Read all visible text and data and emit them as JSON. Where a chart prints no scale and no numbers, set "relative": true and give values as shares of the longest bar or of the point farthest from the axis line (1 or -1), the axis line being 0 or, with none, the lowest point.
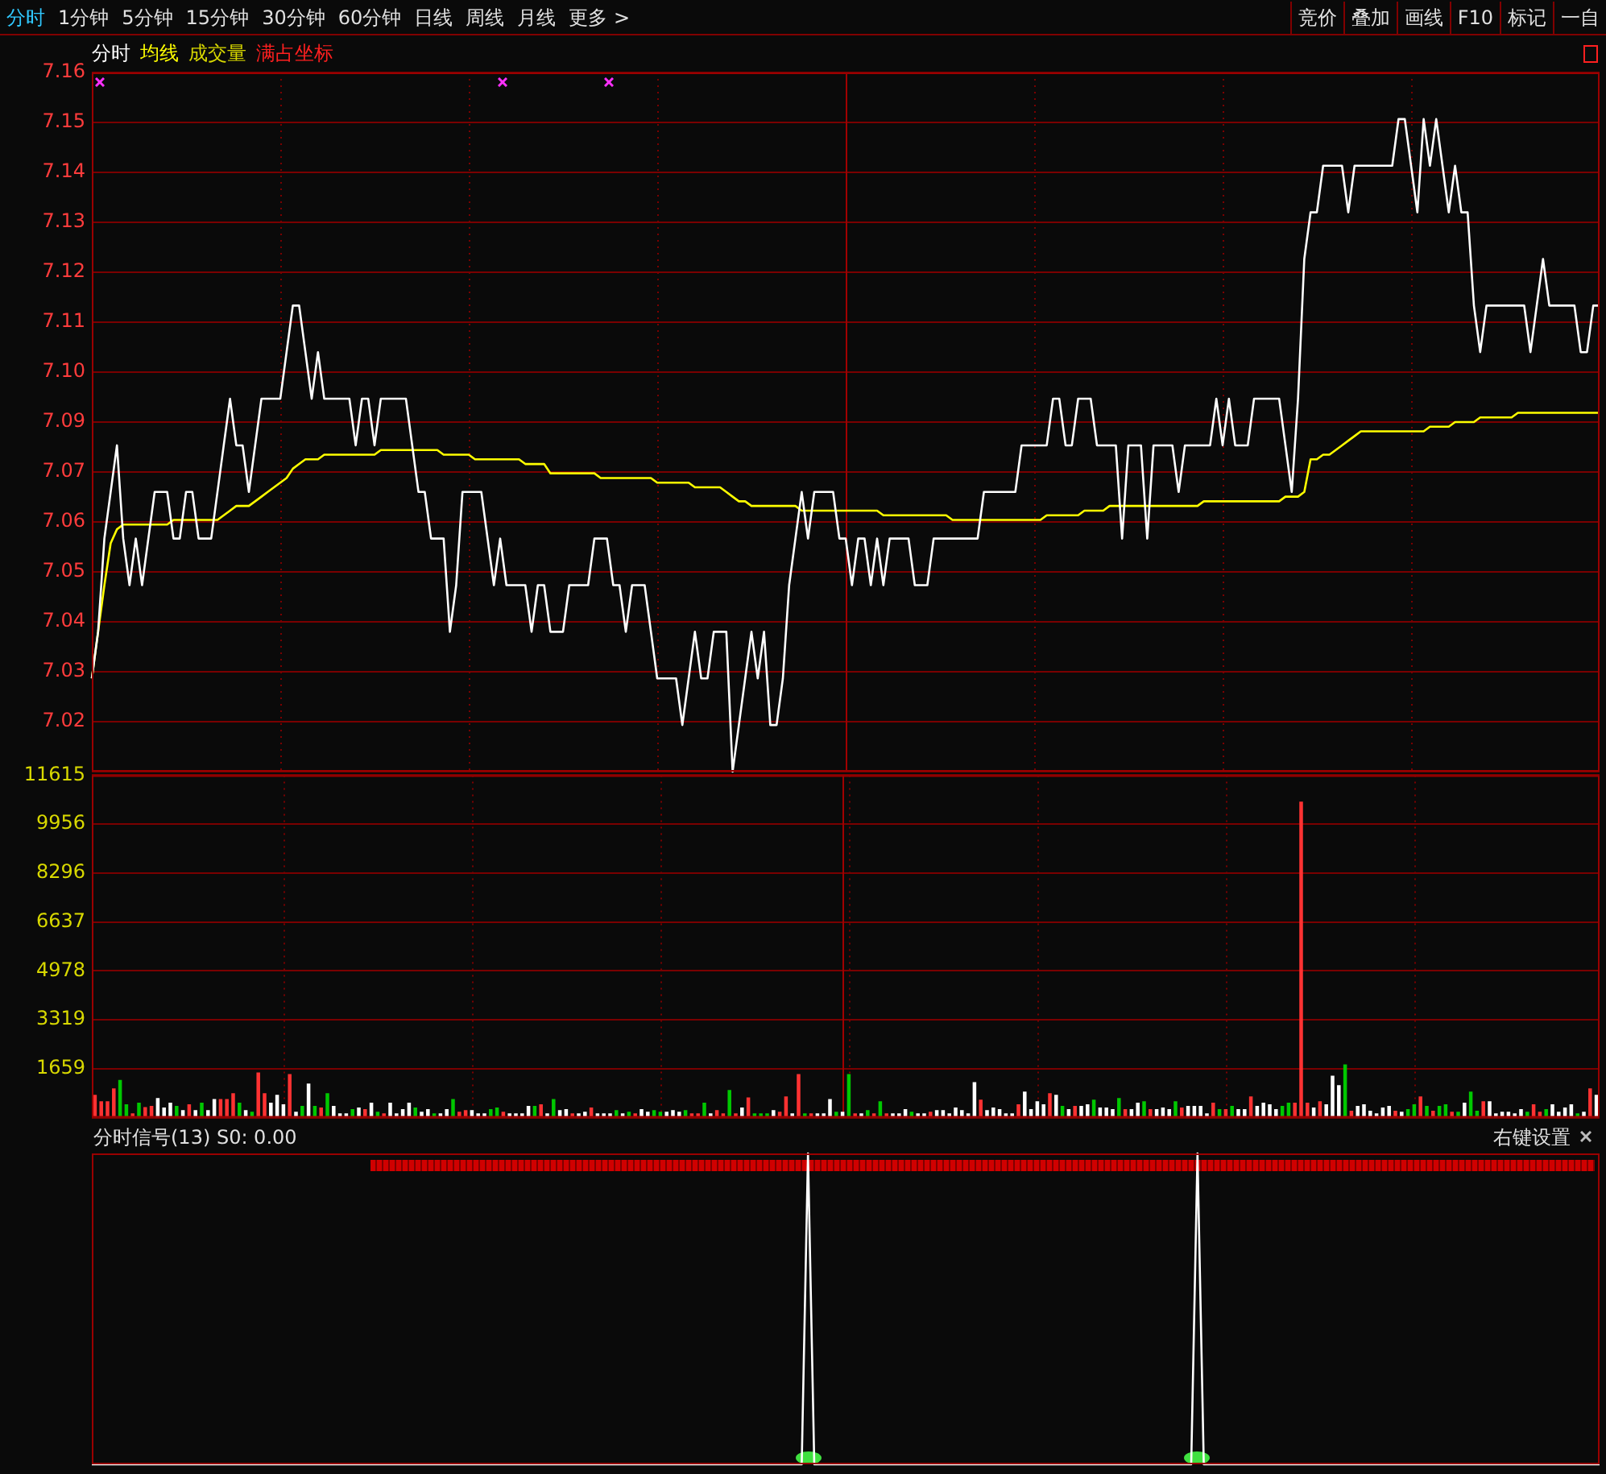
{
  "chart_data": [
    {
      "type": "other",
      "annotations": [
        "分时",
        "1分钟",
        "5分钟",
        "15分钟",
        "30分钟",
        "60分钟",
        "日线",
        "周线",
        "月线",
        "更多 >",
        "竞价",
        "叠加",
        "画线",
        "F10",
        "标记",
        "一自"
      ]
    },
    {
      "type": "line",
      "categories": [
        null,
        null,
        null,
        null,
        null,
        null,
        null,
        null,
        null,
        null,
        null,
        null,
        null,
        null,
        null,
        null,
        null,
        null,
        null,
        null,
        null,
        null,
        null,
        null,
        null,
        null,
        null,
        null,
        null,
        null,
        null,
        null,
        null,
        null,
        null,
        null,
        null,
        null,
        null,
        null,
        null,
        null,
        null,
        null,
        null,
        null,
        null,
        null,
        null,
        null,
        null,
        null,
        null,
        null,
        null,
        null,
        null,
        null,
        null,
        null,
        null,
        null,
        null,
        null,
        null,
        null,
        null,
        null,
        null,
        null,
        null,
        null,
        null,
        null,
        null,
        null,
        null,
        null,
        null,
        null,
        null,
        null,
        null,
        null,
        null,
        null,
        null,
        null,
        null,
        null,
        null,
        null,
        null,
        null,
        null,
        null,
        null,
        null,
        null,
        null,
        null,
        null,
        null,
        null,
        null,
        null,
        null,
        null,
        null,
        null,
        null,
        null,
        null,
        null,
        null,
        null,
        null,
        null,
        null,
        null,
        null,
        null,
        null,
        null,
        null,
        null,
        null,
        null,
        null,
        null,
        null,
        null,
        null,
        null,
        null,
        null,
        null,
        null,
        null,
        null,
        null,
        null,
        null,
        null,
        null,
        null,
        null,
        null,
        null,
        null,
        null,
        null,
        null,
        null,
        null,
        null,
        null,
        null,
        null,
        null,
        null,
        null,
        null,
        null,
        null,
        null,
        null,
        null,
        null,
        null,
        null,
        null,
        null,
        null,
        null,
        null,
        null,
        null,
        null,
        null,
        null,
        null,
        null,
        null,
        null,
        null,
        null,
        null,
        null,
        null,
        null,
        null,
        null,
        null,
        null,
        null,
        null,
        null,
        null,
        null,
        null,
        null,
        null,
        null,
        null,
        null,
        null,
        null,
        null,
        null,
        null,
        null,
        null,
        null,
        null,
        null,
        null,
        null,
        null,
        null,
        null,
        null,
        null,
        null,
        null,
        null,
        null,
        null,
        null,
        null,
        null,
        null,
        null,
        null,
        null,
        null,
        null,
        null,
        null,
        null,
        null
      ],
      "series": [
        {
          "name": "分时",
          "color": "#ffffff",
          "values": [
            7.03,
            7.04,
            7.06,
            7.07,
            7.08,
            7.06,
            7.05,
            7.06,
            7.05,
            7.06,
            7.07,
            7.07,
            7.07,
            7.06,
            7.06,
            7.07,
            7.07,
            7.06,
            7.06,
            7.06,
            7.07,
            7.08,
            7.09,
            7.08,
            7.08,
            7.07,
            7.08,
            7.09,
            7.09,
            7.09,
            7.09,
            7.1,
            7.11,
            7.11,
            7.1,
            7.09,
            7.1,
            7.09,
            7.09,
            7.09,
            7.09,
            7.09,
            7.08,
            7.09,
            7.09,
            7.08,
            7.09,
            7.09,
            7.09,
            7.09,
            7.09,
            7.08,
            7.07,
            7.07,
            7.06,
            7.06,
            7.06,
            7.04,
            7.05,
            7.07,
            7.07,
            7.07,
            7.07,
            7.06,
            7.05,
            7.06,
            7.05,
            7.05,
            7.05,
            7.05,
            7.04,
            7.05,
            7.05,
            7.04,
            7.04,
            7.04,
            7.05,
            7.05,
            7.05,
            7.05,
            7.06,
            7.06,
            7.06,
            7.05,
            7.05,
            7.04,
            7.05,
            7.05,
            7.05,
            7.04,
            7.03,
            7.03,
            7.03,
            7.03,
            7.02,
            7.03,
            7.04,
            7.03,
            7.03,
            7.04,
            7.04,
            7.04,
            7.01,
            7.02,
            7.03,
            7.04,
            7.03,
            7.04,
            7.02,
            7.02,
            7.03,
            7.05,
            7.06,
            7.07,
            7.06,
            7.07,
            7.07,
            7.07,
            7.07,
            7.06,
            7.06,
            7.05,
            7.06,
            7.06,
            7.05,
            7.06,
            7.05,
            7.06,
            7.06,
            7.06,
            7.06,
            7.05,
            7.05,
            7.05,
            7.06,
            7.06,
            7.06,
            7.06,
            7.06,
            7.06,
            7.06,
            7.06,
            7.07,
            7.07,
            7.07,
            7.07,
            7.07,
            7.07,
            7.08,
            7.08,
            7.08,
            7.08,
            7.08,
            7.09,
            7.09,
            7.08,
            7.08,
            7.09,
            7.09,
            7.09,
            7.08,
            7.08,
            7.08,
            7.08,
            7.06,
            7.08,
            7.08,
            7.08,
            7.06,
            7.08,
            7.08,
            7.08,
            7.08,
            7.07,
            7.08,
            7.08,
            7.08,
            7.08,
            7.08,
            7.09,
            7.08,
            7.09,
            7.08,
            7.08,
            7.08,
            7.09,
            7.09,
            7.09,
            7.09,
            7.09,
            7.08,
            7.07,
            7.09,
            7.12,
            7.13,
            7.13,
            7.14,
            7.14,
            7.14,
            7.14,
            7.13,
            7.14,
            7.14,
            7.14,
            7.14,
            7.14,
            7.14,
            7.14,
            7.15,
            7.15,
            7.14,
            7.13,
            7.15,
            7.14,
            7.15,
            7.14,
            7.13,
            7.14,
            7.13,
            7.13,
            7.11,
            7.1,
            7.11,
            7.11,
            7.11,
            7.11,
            7.11,
            7.11,
            7.11,
            7.1,
            7.11,
            7.12,
            7.11,
            7.11,
            7.11,
            7.11,
            7.11,
            7.1,
            7.1,
            7.11,
            7.11
          ]
        },
        {
          "name": "均线",
          "color": "#ffff00",
          "values": [
            7.03,
            7.04,
            7.05,
            7.059,
            7.062,
            7.063,
            7.063,
            7.063,
            7.063,
            7.063,
            7.063,
            7.063,
            7.063,
            7.064,
            7.064,
            7.064,
            7.064,
            7.064,
            7.064,
            7.064,
            7.064,
            7.065,
            7.066,
            7.067,
            7.067,
            7.067,
            7.068,
            7.069,
            7.07,
            7.071,
            7.072,
            7.073,
            7.075,
            7.076,
            7.077,
            7.077,
            7.077,
            7.078,
            7.078,
            7.078,
            7.078,
            7.078,
            7.078,
            7.078,
            7.078,
            7.078,
            7.079,
            7.079,
            7.079,
            7.079,
            7.079,
            7.079,
            7.079,
            7.079,
            7.079,
            7.079,
            7.078,
            7.078,
            7.078,
            7.078,
            7.078,
            7.077,
            7.077,
            7.077,
            7.077,
            7.077,
            7.077,
            7.077,
            7.077,
            7.076,
            7.076,
            7.076,
            7.076,
            7.074,
            7.074,
            7.074,
            7.074,
            7.074,
            7.074,
            7.074,
            7.074,
            7.073,
            7.073,
            7.073,
            7.073,
            7.073,
            7.073,
            7.073,
            7.073,
            7.073,
            7.072,
            7.072,
            7.072,
            7.072,
            7.072,
            7.072,
            7.071,
            7.071,
            7.071,
            7.071,
            7.071,
            7.07,
            7.069,
            7.068,
            7.068,
            7.067,
            7.067,
            7.067,
            7.067,
            7.067,
            7.067,
            7.067,
            7.067,
            7.066,
            7.066,
            7.066,
            7.066,
            7.066,
            7.066,
            7.066,
            7.066,
            7.066,
            7.066,
            7.066,
            7.066,
            7.066,
            7.065,
            7.065,
            7.065,
            7.065,
            7.065,
            7.065,
            7.065,
            7.065,
            7.065,
            7.065,
            7.065,
            7.064,
            7.064,
            7.064,
            7.064,
            7.064,
            7.064,
            7.064,
            7.064,
            7.064,
            7.064,
            7.064,
            7.064,
            7.064,
            7.064,
            7.064,
            7.065,
            7.065,
            7.065,
            7.065,
            7.065,
            7.065,
            7.066,
            7.066,
            7.066,
            7.066,
            7.067,
            7.067,
            7.067,
            7.067,
            7.067,
            7.067,
            7.067,
            7.067,
            7.067,
            7.067,
            7.067,
            7.067,
            7.067,
            7.067,
            7.067,
            7.068,
            7.068,
            7.068,
            7.068,
            7.068,
            7.068,
            7.068,
            7.068,
            7.068,
            7.068,
            7.068,
            7.068,
            7.068,
            7.069,
            7.069,
            7.069,
            7.07,
            7.077,
            7.077,
            7.078,
            7.078,
            7.079,
            7.08,
            7.081,
            7.082,
            7.083,
            7.083,
            7.083,
            7.083,
            7.083,
            7.083,
            7.083,
            7.083,
            7.083,
            7.083,
            7.083,
            7.084,
            7.084,
            7.084,
            7.084,
            7.085,
            7.085,
            7.085,
            7.085,
            7.086,
            7.086,
            7.086,
            7.086,
            7.086,
            7.086,
            7.087,
            7.087,
            7.087,
            7.087,
            7.087,
            7.087,
            7.087,
            7.087,
            7.087,
            7.087,
            7.087,
            7.087,
            7.087,
            7.087
          ]
        }
      ],
      "ylim": [
        7.01,
        7.16
      ],
      "yticks": [
        {
          "value": 7.01,
          "label": null
        },
        {
          "value": 7.0207,
          "label": "7.02"
        },
        {
          "value": 7.0314,
          "label": "7.03"
        },
        {
          "value": 7.0421,
          "label": "7.04"
        },
        {
          "value": 7.0529,
          "label": "7.05"
        },
        {
          "value": 7.0636,
          "label": "7.06"
        },
        {
          "value": 7.0743,
          "label": "7.07"
        },
        {
          "value": 7.085,
          "label": "7.09"
        },
        {
          "value": 7.0957,
          "label": "7.10"
        },
        {
          "value": 7.1064,
          "label": "7.11"
        },
        {
          "value": 7.1171,
          "label": "7.12"
        },
        {
          "value": 7.1279,
          "label": "7.13"
        },
        {
          "value": 7.1386,
          "label": "7.14"
        },
        {
          "value": 7.1493,
          "label": "7.15"
        },
        {
          "value": 7.16,
          "label": "7.16"
        }
      ],
      "grid": true,
      "tick_labels": "y",
      "annotations": [
        "成交量",
        "满占坐标"
      ]
    },
    {
      "type": "bar",
      "categories": [
        null,
        null,
        null,
        null,
        null,
        null,
        null,
        null,
        null,
        null,
        null,
        null,
        null,
        null,
        null,
        null,
        null,
        null,
        null,
        null,
        null,
        null,
        null,
        null,
        null,
        null,
        null,
        null,
        null,
        null,
        null,
        null,
        null,
        null,
        null,
        null,
        null,
        null,
        null,
        null,
        null,
        null,
        null,
        null,
        null,
        null,
        null,
        null,
        null,
        null,
        null,
        null,
        null,
        null,
        null,
        null,
        null,
        null,
        null,
        null,
        null,
        null,
        null,
        null,
        null,
        null,
        null,
        null,
        null,
        null,
        null,
        null,
        null,
        null,
        null,
        null,
        null,
        null,
        null,
        null,
        null,
        null,
        null,
        null,
        null,
        null,
        null,
        null,
        null,
        null,
        null,
        null,
        null,
        null,
        null,
        null,
        null,
        null,
        null,
        null,
        null,
        null,
        null,
        null,
        null,
        null,
        null,
        null,
        null,
        null,
        null,
        null,
        null,
        null,
        null,
        null,
        null,
        null,
        null,
        null,
        null,
        null,
        null,
        null,
        null,
        null,
        null,
        null,
        null,
        null,
        null,
        null,
        null,
        null,
        null,
        null,
        null,
        null,
        null,
        null,
        null,
        null,
        null,
        null,
        null,
        null,
        null,
        null,
        null,
        null,
        null,
        null,
        null,
        null,
        null,
        null,
        null,
        null,
        null,
        null,
        null,
        null,
        null,
        null,
        null,
        null,
        null,
        null,
        null,
        null,
        null,
        null,
        null,
        null,
        null,
        null,
        null,
        null,
        null,
        null,
        null,
        null,
        null,
        null,
        null,
        null,
        null,
        null,
        null,
        null,
        null,
        null,
        null,
        null,
        null,
        null,
        null,
        null,
        null,
        null,
        null,
        null,
        null,
        null,
        null,
        null,
        null,
        null,
        null,
        null,
        null,
        null,
        null,
        null,
        null,
        null,
        null,
        null,
        null,
        null,
        null,
        null,
        null,
        null,
        null,
        null,
        null,
        null,
        null,
        null,
        null,
        null,
        null,
        null,
        null,
        null,
        null,
        null,
        null,
        null
      ],
      "values": [
        758,
        541,
        541,
        974,
        1263,
        433,
        126,
        487,
        343,
        379,
        649,
        325,
        487,
        379,
        235,
        433,
        235,
        487,
        235,
        613,
        613,
        613,
        812,
        487,
        235,
        180,
        1515,
        812,
        487,
        758,
        433,
        1461,
        180,
        379,
        1137,
        379,
        325,
        812,
        379,
        126,
        126,
        271,
        325,
        271,
        487,
        180,
        126,
        487,
        126,
        271,
        487,
        325,
        180,
        271,
        126,
        126,
        271,
        613,
        180,
        235,
        235,
        126,
        126,
        271,
        325,
        180,
        126,
        126,
        126,
        379,
        379,
        433,
        126,
        613,
        235,
        271,
        126,
        126,
        180,
        325,
        126,
        126,
        126,
        235,
        126,
        180,
        126,
        271,
        180,
        235,
        180,
        180,
        235,
        180,
        235,
        126,
        126,
        487,
        126,
        235,
        126,
        920,
        126,
        325,
        667,
        126,
        126,
        126,
        235,
        180,
        704,
        126,
        1461,
        126,
        126,
        126,
        126,
        613,
        180,
        180,
        1461,
        126,
        126,
        235,
        126,
        541,
        126,
        126,
        126,
        271,
        180,
        126,
        126,
        180,
        235,
        235,
        126,
        325,
        235,
        126,
        1190,
        595,
        235,
        325,
        271,
        126,
        126,
        433,
        866,
        271,
        541,
        433,
        812,
        758,
        379,
        271,
        379,
        379,
        433,
        595,
        325,
        325,
        271,
        649,
        271,
        271,
        487,
        541,
        271,
        271,
        325,
        271,
        541,
        325,
        379,
        379,
        379,
        126,
        487,
        271,
        271,
        379,
        271,
        271,
        704,
        379,
        487,
        433,
        271,
        379,
        487,
        487,
        10698,
        487,
        325,
        541,
        433,
        1407,
        1082,
        1786,
        217,
        379,
        433,
        217,
        126,
        325,
        379,
        217,
        180,
        271,
        433,
        704,
        379,
        217,
        379,
        433,
        180,
        180,
        487,
        866,
        217,
        541,
        541,
        126,
        180,
        180,
        126,
        271,
        180,
        433,
        180,
        271,
        433,
        180,
        325,
        433,
        126,
        180,
        974,
        758
      ],
      "colors": [
        "#ff3232",
        "#ff3232",
        "#ff3232",
        "#ff3232",
        "#00c800",
        "#00c800",
        "#ff3232",
        "#00c800",
        "#ff3232",
        "#ff3232",
        "#ffffff",
        "#ffffff",
        "#ffffff",
        "#00c800",
        "#ffffff",
        "#ff3232",
        "#ffffff",
        "#00c800",
        "#ffffff",
        "#ffffff",
        "#ff3232",
        "#ff3232",
        "#ff3232",
        "#00c800",
        "#ffffff",
        "#00c800",
        "#ff3232",
        "#ff3232",
        "#ffffff",
        "#ffffff",
        "#ffffff",
        "#ff3232",
        "#ffffff",
        "#00c800",
        "#ffffff",
        "#00c800",
        "#ff3232",
        "#00c800",
        "#ffffff",
        "#ffffff",
        "#ffffff",
        "#00c800",
        "#ffffff",
        "#ff3232",
        "#ffffff",
        "#00c800",
        "#ff3232",
        "#ffffff",
        "#ffffff",
        "#ffffff",
        "#ffffff",
        "#00c800",
        "#ffffff",
        "#ffffff",
        "#00c800",
        "#ffffff",
        "#ffffff",
        "#00c800",
        "#ff3232",
        "#ff3232",
        "#ffffff",
        "#ffffff",
        "#ffffff",
        "#00c800",
        "#00c800",
        "#ff3232",
        "#ffffff",
        "#ffffff",
        "#ffffff",
        "#ffffff",
        "#00c800",
        "#ff3232",
        "#ffffff",
        "#00c800",
        "#ffffff",
        "#ffffff",
        "#ff3232",
        "#ffffff",
        "#ffffff",
        "#ff3232",
        "#ffffff",
        "#ffffff",
        "#ffffff",
        "#00c800",
        "#ffffff",
        "#00c800",
        "#ff3232",
        "#ffffff",
        "#ffffff",
        "#00c800",
        "#00c800",
        "#ffffff",
        "#ffffff",
        "#ffffff",
        "#00c800",
        "#ff3232",
        "#ff3232",
        "#00c800",
        "#ffffff",
        "#ff3232",
        "#ff3232",
        "#00c800",
        "#ff3232",
        "#ffffff",
        "#ff3232",
        "#00c800",
        "#00c800",
        "#00c800",
        "#ffffff",
        "#ff3232",
        "#ff3232",
        "#ffffff",
        "#ff3232",
        "#00c800",
        "#ff3232",
        "#ffffff",
        "#ffffff",
        "#ffffff",
        "#00c800",
        "#ffffff",
        "#00c800",
        "#ff3232",
        "#ffffff",
        "#00c800",
        "#ff3232",
        "#00c800",
        "#ff3232",
        "#ffffff",
        "#ffffff",
        "#ffffff",
        "#00c800",
        "#ffffff",
        "#ffffff",
        "#ff3232",
        "#ffffff",
        "#ffffff",
        "#ffffff",
        "#ffffff",
        "#ffffff",
        "#ffffff",
        "#ffffff",
        "#ff3232",
        "#ffffff",
        "#ffffff",
        "#ffffff",
        "#ffffff",
        "#ffffff",
        "#ff3232",
        "#ffffff",
        "#ffffff",
        "#ffffff",
        "#ffffff",
        "#ff3232",
        "#ffffff",
        "#00c800",
        "#ffffff",
        "#ff3232",
        "#ffffff",
        "#ffffff",
        "#00c800",
        "#ffffff",
        "#ffffff",
        "#ffffff",
        "#00c800",
        "#ff3232",
        "#ffffff",
        "#ffffff",
        "#00c800",
        "#ff3232",
        "#ffffff",
        "#ffffff",
        "#ffffff",
        "#00c800",
        "#ff3232",
        "#ffffff",
        "#ffffff",
        "#ffffff",
        "#ffffff",
        "#ff3232",
        "#00c800",
        "#ff3232",
        "#00c800",
        "#ffffff",
        "#ffffff",
        "#ff3232",
        "#ffffff",
        "#ffffff",
        "#ffffff",
        "#ffffff",
        "#00c800",
        "#00c800",
        "#ff3232",
        "#ff3232",
        "#ff3232",
        "#ffffff",
        "#ff3232",
        "#ffffff",
        "#ffffff",
        "#ffffff",
        "#00c800",
        "#ff3232",
        "#ffffff",
        "#ffffff",
        "#ffffff",
        "#ffffff",
        "#ffffff",
        "#ffffff",
        "#ff3232",
        "#ffffff",
        "#00c800",
        "#00c800",
        "#ff3232",
        "#00c800",
        "#ff3232",
        "#00c800",
        "#00c800",
        "#ff3232",
        "#00c800",
        "#ffffff",
        "#00c800",
        "#00c800",
        "#ff3232",
        "#ffffff",
        "#ffffff",
        "#ffffff",
        "#ffffff",
        "#ffffff",
        "#ffffff",
        "#00c800",
        "#ff3232",
        "#ff3232",
        "#00c800",
        "#ffffff",
        "#ffffff",
        "#ffffff",
        "#ffffff",
        "#00c800",
        "#ffffff",
        "#ff3232",
        "#ffffff"
      ],
      "ylim": [
        0,
        11615
      ],
      "yticks": [
        {
          "value": 0,
          "label": null
        },
        1659,
        3319,
        4978,
        6637,
        8296,
        9956,
        11615
      ],
      "grid": true,
      "tick_labels": "y"
    },
    {
      "type": "line",
      "title": "分时信号(13) S0: 0.00",
      "annotations": [
        "右键设置"
      ],
      "relative": true,
      "color": "#ffffff",
      "tick_labels": false,
      "categories": [
        null,
        null,
        null,
        null,
        null,
        null,
        null,
        null,
        null,
        null,
        null,
        null,
        null,
        null,
        null,
        null,
        null,
        null,
        null,
        null,
        null,
        null,
        null,
        null,
        null,
        null,
        null,
        null,
        null,
        null,
        null,
        null,
        null,
        null,
        null,
        null,
        null,
        null,
        null,
        null,
        null,
        null,
        null,
        null,
        null,
        null,
        null,
        null,
        null,
        null,
        null,
        null,
        null,
        null,
        null,
        null,
        null,
        null,
        null,
        null,
        null,
        null,
        null,
        null,
        null,
        null,
        null,
        null,
        null,
        null,
        null,
        null,
        null,
        null,
        null,
        null,
        null,
        null,
        null,
        null,
        null,
        null,
        null,
        null,
        null,
        null,
        null,
        null,
        null,
        null,
        null,
        null,
        null,
        null,
        null,
        null,
        null,
        null,
        null,
        null,
        null,
        null,
        null,
        null,
        null,
        null,
        null,
        null,
        null,
        null,
        null,
        null,
        null,
        null,
        null,
        null,
        null,
        null,
        null,
        null,
        null,
        null,
        null,
        null,
        null,
        null,
        null,
        null,
        null,
        null,
        null,
        null,
        null,
        null,
        null,
        null,
        null,
        null,
        null,
        null,
        null,
        null,
        null,
        null,
        null,
        null,
        null,
        null,
        null,
        null,
        null,
        null,
        null,
        null,
        null,
        null,
        null,
        null,
        null,
        null,
        null,
        null,
        null,
        null,
        null,
        null,
        null,
        null,
        null,
        null,
        null,
        null,
        null,
        null,
        null,
        null,
        null,
        null,
        null,
        null,
        null,
        null,
        null,
        null,
        null,
        null,
        null,
        null,
        null,
        null,
        null,
        null,
        null,
        null,
        null,
        null,
        null,
        null,
        null,
        null,
        null,
        null,
        null,
        null,
        null,
        null,
        null,
        null,
        null,
        null,
        null,
        null,
        null,
        null,
        null,
        null,
        null,
        null,
        null,
        null,
        null,
        null,
        null,
        null,
        null,
        null,
        null,
        null,
        null,
        null,
        null,
        null,
        null,
        null,
        null,
        null,
        null,
        null,
        null,
        null,
        null
      ],
      "values": [
        0,
        0,
        0,
        0,
        0,
        0,
        0,
        0,
        0,
        0,
        0,
        0,
        0,
        0,
        0,
        0,
        0,
        0,
        0,
        0,
        0,
        0,
        0,
        0,
        0,
        0,
        0,
        0,
        0,
        0,
        0,
        0,
        0,
        0,
        0,
        0,
        0,
        0,
        0,
        0,
        0,
        0,
        0,
        0,
        0,
        0,
        0,
        0,
        0,
        0,
        0,
        0,
        0,
        0,
        0,
        0,
        0,
        0,
        0,
        0,
        0,
        0,
        0,
        0,
        0,
        0,
        0,
        0,
        0,
        0,
        0,
        0,
        0,
        0,
        0,
        0,
        0,
        0,
        0,
        0,
        0,
        0,
        0,
        0,
        0,
        0,
        0,
        0,
        0,
        0,
        0,
        0,
        0,
        0,
        0,
        0,
        0,
        0,
        0,
        0,
        0,
        0,
        0,
        0,
        0,
        0,
        0,
        0,
        0,
        0,
        0,
        0,
        0,
        0,
        1,
        0,
        0,
        0,
        0,
        0,
        0,
        0,
        0,
        0,
        0,
        0,
        0,
        0,
        0,
        0,
        0,
        0,
        0,
        0,
        0,
        0,
        0,
        0,
        0,
        0,
        0,
        0,
        0,
        0,
        0,
        0,
        0,
        0,
        0,
        0,
        0,
        0,
        0,
        0,
        0,
        0,
        0,
        0,
        0,
        0,
        0,
        0,
        0,
        0,
        0,
        0,
        0,
        0,
        0,
        0,
        0,
        0,
        0,
        0,
        0,
        0,
        1,
        0,
        0,
        0,
        0,
        0,
        0,
        0,
        0,
        0,
        0,
        0,
        0,
        0,
        0,
        0,
        0,
        0,
        0,
        0,
        0,
        0,
        0,
        0,
        0,
        0,
        0,
        0,
        0,
        0,
        0,
        0,
        0,
        0,
        0,
        0,
        0,
        0,
        0,
        0,
        0,
        0,
        0,
        0,
        0,
        0,
        0,
        0,
        0,
        0,
        0,
        0,
        0,
        0,
        0,
        0,
        0,
        0,
        0,
        0,
        0,
        0,
        0,
        0,
        0
      ]
    }
  ]
}
